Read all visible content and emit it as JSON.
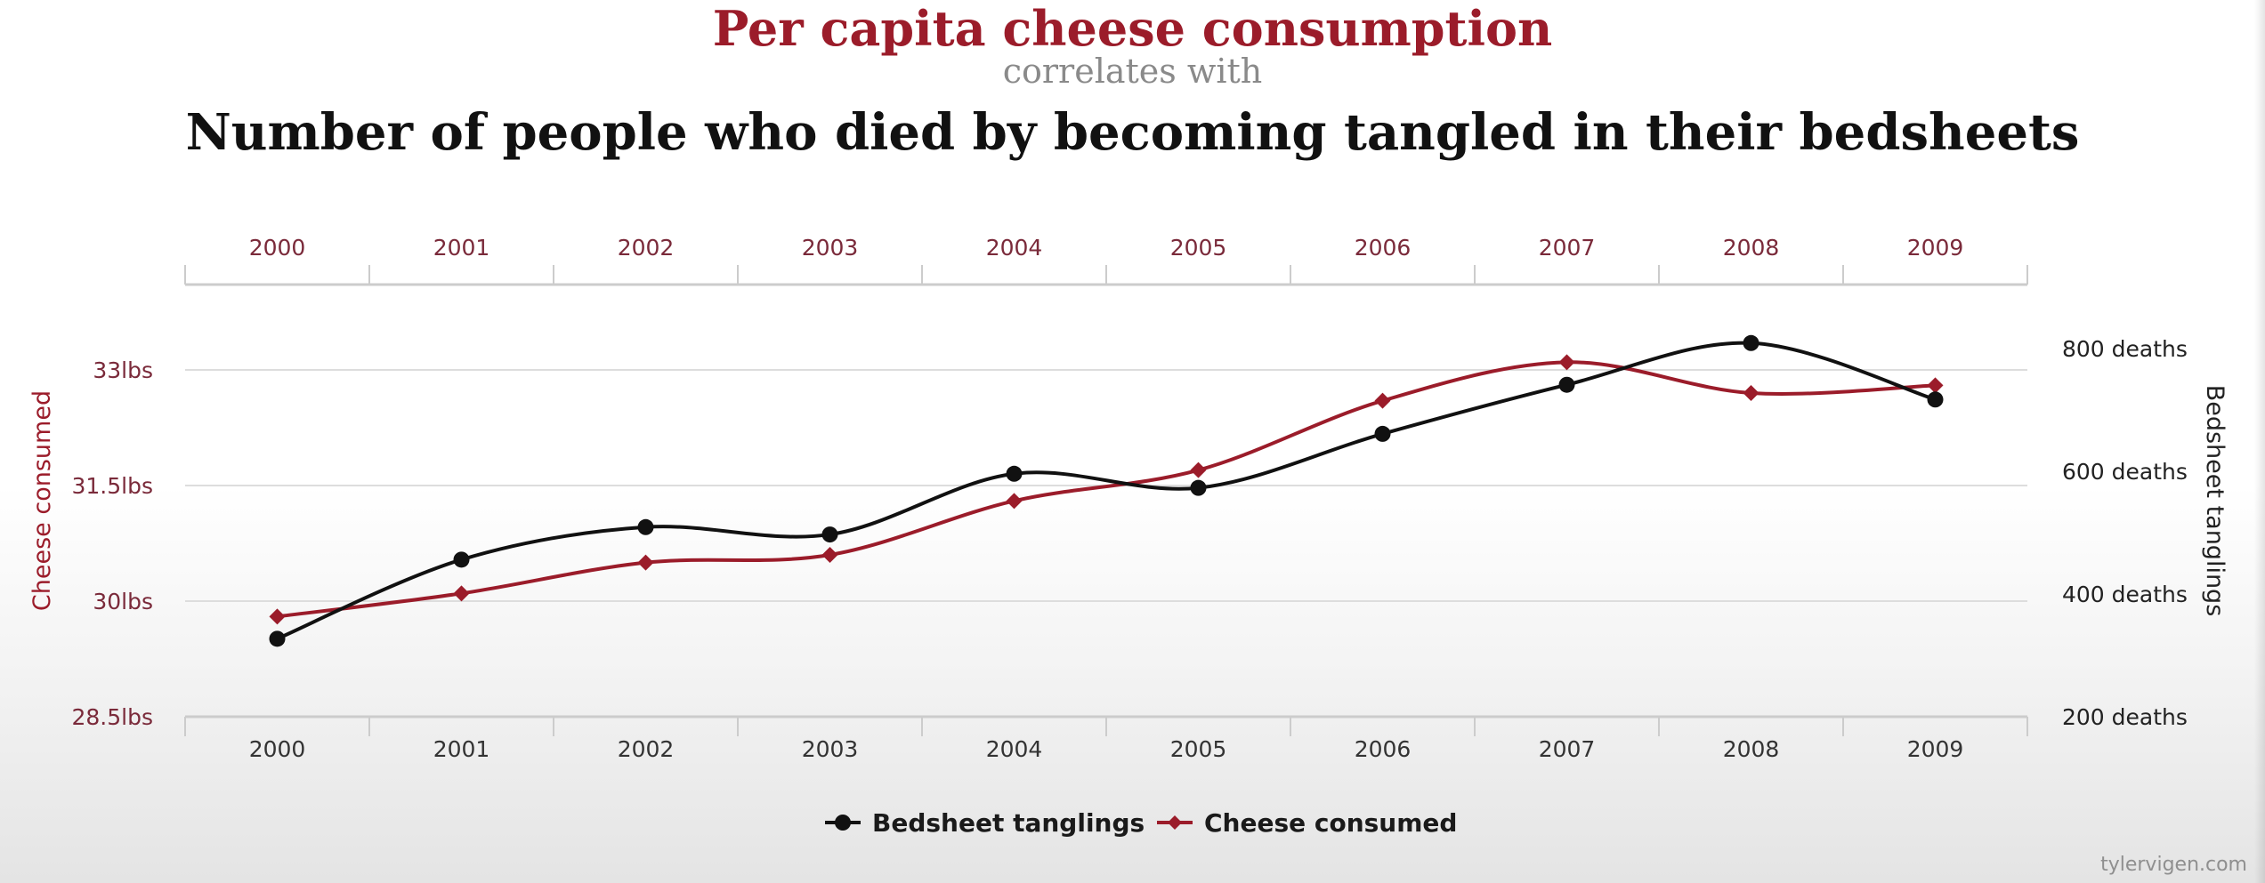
{
  "title": "Per capita cheese consumption",
  "subtitle": "correlates with",
  "title2": "Number of people who died by becoming tangled in their bedsheets",
  "watermark": "tylervigen.com",
  "colors": {
    "cheese": "#9b1c2a",
    "bedsheet": "#111111",
    "title": "#9b1c2a",
    "grid": "#dddddd",
    "axis": "#cccccc"
  },
  "chart_data": {
    "type": "line",
    "x": [
      "2000",
      "2001",
      "2002",
      "2003",
      "2004",
      "2005",
      "2006",
      "2007",
      "2008",
      "2009"
    ],
    "ylabel_left": "Cheese consumed",
    "ylabel_right": "Bedsheet tanglings",
    "left_axis": {
      "ylim": [
        28.5,
        34
      ],
      "ticks": [
        28.5,
        30,
        31.5,
        33
      ],
      "tick_labels": [
        "28.5lbs",
        "30lbs",
        "31.5lbs",
        "33lbs"
      ]
    },
    "right_axis": {
      "ylim": [
        200,
        840
      ],
      "ticks": [
        200,
        400,
        600,
        800
      ],
      "tick_labels": [
        "200 deaths",
        "400 deaths",
        "600 deaths",
        "800 deaths"
      ]
    },
    "series": [
      {
        "name": "Bedsheet tanglings",
        "axis": "right",
        "marker": "circle",
        "color": "#111111",
        "values": [
          327,
          456,
          509,
          497,
          596,
          573,
          661,
          741,
          809,
          717
        ]
      },
      {
        "name": "Cheese consumed",
        "axis": "left",
        "marker": "diamond",
        "color": "#9b1c2a",
        "values": [
          29.8,
          30.1,
          30.5,
          30.6,
          31.3,
          31.7,
          32.6,
          33.1,
          32.7,
          32.8
        ]
      }
    ],
    "legend": "bottom-center",
    "grid": true
  }
}
